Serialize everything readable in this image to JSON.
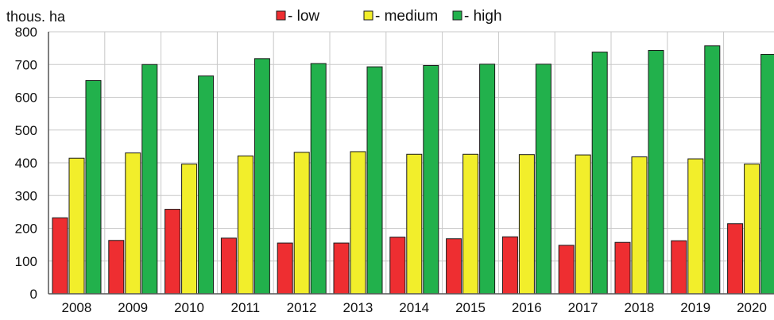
{
  "chart_data": {
    "type": "bar",
    "ylabel": "thous. ha",
    "ylim": [
      0,
      800
    ],
    "yticks": [
      0,
      100,
      200,
      300,
      400,
      500,
      600,
      700,
      800
    ],
    "grid": true,
    "legend_position": "top-center",
    "categories": [
      "2008",
      "2009",
      "2010",
      "2011",
      "2012",
      "2013",
      "2014",
      "2015",
      "2016",
      "2017",
      "2018",
      "2019",
      "2020"
    ],
    "series": [
      {
        "name": "- low",
        "color": "#ee2e31",
        "values": [
          232,
          163,
          258,
          170,
          155,
          155,
          173,
          168,
          174,
          148,
          157,
          162,
          214
        ]
      },
      {
        "name": "- medium",
        "color": "#f2ee2b",
        "values": [
          414,
          430,
          396,
          421,
          432,
          434,
          426,
          426,
          425,
          424,
          418,
          412,
          396
        ]
      },
      {
        "name": "- high",
        "color": "#22b14c",
        "values": [
          651,
          700,
          665,
          718,
          703,
          693,
          697,
          701,
          701,
          738,
          743,
          757,
          731
        ]
      }
    ]
  }
}
